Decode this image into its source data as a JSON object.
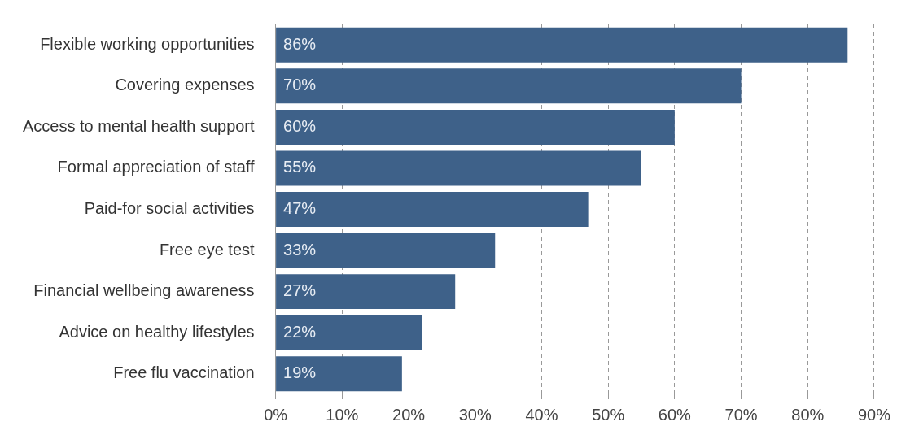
{
  "chart_data": {
    "type": "bar",
    "orientation": "horizontal",
    "categories": [
      "Flexible working opportunities",
      "Covering expenses",
      "Access to mental health support",
      "Formal appreciation of staff",
      "Paid-for social activities",
      "Free eye test",
      "Financial wellbeing awareness",
      "Advice on healthy lifestyles",
      "Free flu vaccination"
    ],
    "values": [
      86,
      70,
      60,
      55,
      47,
      33,
      27,
      22,
      19
    ],
    "value_labels": [
      "86%",
      "70%",
      "60%",
      "55%",
      "47%",
      "33%",
      "27%",
      "22%",
      "19%"
    ],
    "color": "#3e6189",
    "xlim": [
      0,
      90
    ],
    "xticks": [
      {
        "value": 0,
        "label": "0%"
      },
      {
        "value": 10,
        "label": "10%"
      },
      {
        "value": 20,
        "label": "20%"
      },
      {
        "value": 30,
        "label": "30%"
      },
      {
        "value": 40,
        "label": "40%"
      },
      {
        "value": 50,
        "label": "50%"
      },
      {
        "value": 60,
        "label": "60%"
      },
      {
        "value": 70,
        "label": "70%"
      },
      {
        "value": 80,
        "label": "80%"
      },
      {
        "value": 90,
        "label": "90%"
      }
    ],
    "grid": "x",
    "legend": false
  }
}
